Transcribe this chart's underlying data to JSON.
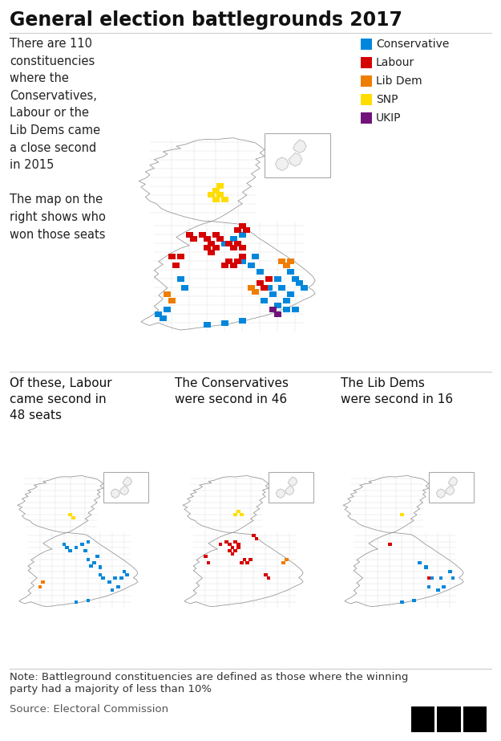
{
  "title": "General election battlegrounds 2017",
  "background_color": "#ffffff",
  "title_fontsize": 17,
  "title_fontweight": "bold",
  "top_left_text": "There are 110\nconstituencies\nwhere the\nConservatives,\nLabour or the\nLib Dems came\na close second\nin 2015\n\nThe map on the\nright shows who\nwon those seats",
  "bottom_left_title": "Of these, Labour\ncame second in\n48 seats",
  "bottom_center_title": "The Conservatives\nwere second in 46",
  "bottom_right_title": "The Lib Dems\nwere second in 16",
  "note_text": "Note: Battleground constituencies are defined as those where the winning\nparty had a majority of less than 10%",
  "source_text": "Source: Electoral Commission",
  "legend_items": [
    {
      "label": "Conservative",
      "color": "#0087dc"
    },
    {
      "label": "Labour",
      "color": "#d50000"
    },
    {
      "label": "Lib Dem",
      "color": "#ee7d00"
    },
    {
      "label": "SNP",
      "color": "#ffdd00"
    },
    {
      "label": "UKIP",
      "color": "#70147a"
    }
  ],
  "map_outline_color": "#999999",
  "map_fill_color": "#ffffff",
  "internal_line_color": "#dddddd",
  "border_color": "#aaaaaa",
  "con_color": "#0087dc",
  "lab_color": "#d50000",
  "ld_color": "#ee7d00",
  "snp_color": "#ffdd00",
  "ukip_color": "#70147a"
}
